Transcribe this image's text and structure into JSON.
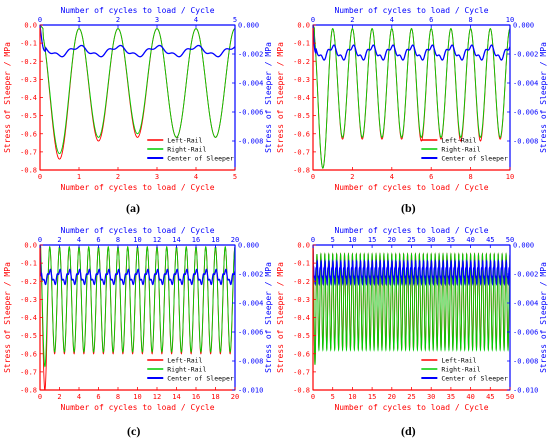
{
  "chart_data": [
    {
      "panel": "(a)",
      "type": "line",
      "x_bottom_label": "Number of cycles to load / Cycle",
      "x_top_label": "Number of cycles to load / Cycle",
      "ylabel_left": "Stress of Sleeper / MPa",
      "ylabel_right": "Stress of Sleeper / MPa",
      "xlim": [
        0,
        5
      ],
      "x_ticks": [
        0,
        1,
        2,
        3,
        4,
        5
      ],
      "ylim_left": [
        -0.8,
        0.0
      ],
      "y_ticks_left": [
        "0.0",
        "-0.1",
        "-0.2",
        "-0.3",
        "-0.4",
        "-0.5",
        "-0.6",
        "-0.7",
        "-0.8"
      ],
      "ylim_right": [
        -0.01,
        0.0
      ],
      "y_ticks_right": [
        "0.000",
        "-0.002",
        "-0.004",
        "-0.006",
        "-0.008"
      ],
      "legend_position": "bottom-right",
      "legend": [
        "Left-Rail",
        "Right-Rail",
        "Center of Sleeper"
      ],
      "series": [
        {
          "name": "Left-Rail",
          "color": "#ff0000",
          "axis": "left",
          "troughs": [
            -0.74,
            -0.64,
            -0.62,
            -0.62,
            -0.62
          ],
          "peak": -0.02
        },
        {
          "name": "Right-Rail",
          "color": "#00cc00",
          "axis": "left",
          "troughs": [
            -0.71,
            -0.62,
            -0.6,
            -0.62,
            -0.62
          ],
          "peak": -0.02
        },
        {
          "name": "Center of Sleeper",
          "color": "#0000ff",
          "axis": "right",
          "base": -0.0018,
          "amplitude": 0.0003
        }
      ]
    },
    {
      "panel": "(b)",
      "type": "line",
      "x_bottom_label": "Number of cycles to load / Cycle",
      "x_top_label": "Number of cycles to load / Cycle",
      "ylabel_left": "Stress of Sleeper / MPa",
      "ylabel_right": "Stress of Sleeper / MPa",
      "xlim": [
        0,
        10
      ],
      "x_ticks": [
        0,
        2,
        4,
        6,
        8,
        10
      ],
      "ylim_left": [
        -0.8,
        0.0
      ],
      "y_ticks_left": [
        "0.0",
        "-0.1",
        "-0.2",
        "-0.3",
        "-0.4",
        "-0.5",
        "-0.6",
        "-0.7",
        "-0.8"
      ],
      "ylim_right": [
        -0.01,
        0.0
      ],
      "y_ticks_right": [
        "0.000",
        "-0.002",
        "-0.004",
        "-0.006",
        "-0.008"
      ],
      "legend_position": "bottom-right",
      "legend": [
        "Left-Rail",
        "Right-Rail",
        "Center of Sleeper"
      ],
      "series": [
        {
          "name": "Left-Rail",
          "color": "#ff0000",
          "axis": "left",
          "troughs": [
            -0.79,
            -0.63,
            -0.63,
            -0.63,
            -0.63,
            -0.64,
            -0.63,
            -0.64,
            -0.64,
            -0.63
          ],
          "peak": -0.02
        },
        {
          "name": "Right-Rail",
          "color": "#00cc00",
          "axis": "left",
          "troughs": [
            -0.79,
            -0.62,
            -0.62,
            -0.62,
            -0.62,
            -0.62,
            -0.62,
            -0.62,
            -0.62,
            -0.62
          ],
          "peak": -0.02
        },
        {
          "name": "Center of Sleeper",
          "color": "#0000ff",
          "axis": "right",
          "base": -0.0019,
          "amplitude": 0.0004
        }
      ]
    },
    {
      "panel": "(c)",
      "type": "line",
      "x_bottom_label": "Number of cycles to load / Cycle",
      "x_top_label": "Number of cycles to load / Cycle",
      "ylabel_left": "Stress of Sleeper / MPa",
      "ylabel_right": "Stress of Sleeper / MPa",
      "xlim": [
        0,
        20
      ],
      "x_ticks": [
        0,
        2,
        4,
        6,
        8,
        10,
        12,
        14,
        16,
        18,
        20
      ],
      "ylim_left": [
        -0.8,
        0.0
      ],
      "y_ticks_left": [
        "0.0",
        "-0.1",
        "-0.2",
        "-0.3",
        "-0.4",
        "-0.5",
        "-0.6",
        "-0.7",
        "-0.8"
      ],
      "ylim_right": [
        -0.01,
        0.0
      ],
      "y_ticks_right": [
        "0.000",
        "-0.002",
        "-0.004",
        "-0.006",
        "-0.008",
        "-0.010"
      ],
      "legend_position": "bottom-right",
      "legend": [
        "Left-Rail",
        "Right-Rail",
        "Center of Sleeper"
      ],
      "series": [
        {
          "name": "Left-Rail",
          "color": "#ff0000",
          "axis": "left",
          "trough_first": -0.8,
          "trough": -0.6,
          "peak": -0.01
        },
        {
          "name": "Right-Rail",
          "color": "#00cc00",
          "axis": "left",
          "trough_first": -0.67,
          "trough": -0.59,
          "peak": -0.01
        },
        {
          "name": "Center of Sleeper",
          "color": "#0000ff",
          "axis": "right",
          "base": -0.0022,
          "amplitude": 0.0004
        }
      ]
    },
    {
      "panel": "(d)",
      "type": "line",
      "x_bottom_label": "Number of cycles to load / Cycle",
      "x_top_label": "Number of cycles to load / Cycle",
      "ylabel_left": "Stress of Sleeper / MPa",
      "ylabel_right": "Stress of Sleeper / MPa",
      "xlim": [
        0,
        50
      ],
      "x_ticks": [
        0,
        5,
        10,
        15,
        20,
        25,
        30,
        35,
        40,
        45,
        50
      ],
      "ylim_left": [
        -0.8,
        0.0
      ],
      "y_ticks_left": [
        "0.0",
        "-0.1",
        "-0.2",
        "-0.3",
        "-0.4",
        "-0.5",
        "-0.6",
        "-0.7",
        "-0.8"
      ],
      "ylim_right": [
        -0.01,
        0.0
      ],
      "y_ticks_right": [
        "0.000",
        "-0.002",
        "-0.004",
        "-0.006",
        "-0.008",
        "-0.010"
      ],
      "legend_position": "bottom-right",
      "legend": [
        "Left-Rail",
        "Right-Rail",
        "Center of Sleeper"
      ],
      "series": [
        {
          "name": "Left-Rail",
          "color": "#ff0000",
          "axis": "left",
          "trough_first": -0.66,
          "trough": -0.57,
          "peak": -0.05
        },
        {
          "name": "Right-Rail",
          "color": "#00cc00",
          "axis": "left",
          "trough_first": -0.66,
          "trough": -0.58,
          "peak": -0.05
        },
        {
          "name": "Center of Sleeper",
          "color": "#0000ff",
          "axis": "right",
          "base": -0.0019,
          "amplitude": 0.0006
        }
      ]
    }
  ]
}
